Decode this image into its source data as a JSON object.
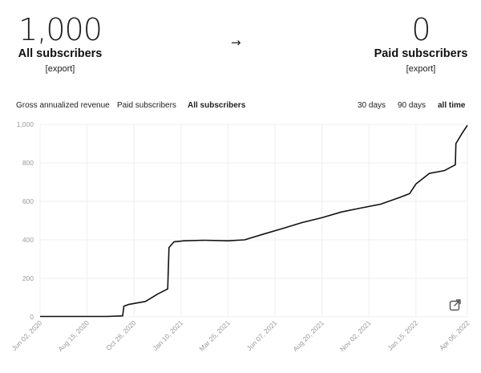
{
  "summary": {
    "left": {
      "number": "1,000",
      "label": "All subscribers",
      "export": "[export]"
    },
    "arrow": "→",
    "right": {
      "number": "0",
      "label": "Paid subscribers",
      "export": "[export]"
    }
  },
  "metric_tabs": [
    {
      "label": "Gross annualized revenue",
      "active": false
    },
    {
      "label": "Paid subscribers",
      "active": false
    },
    {
      "label": "All subscribers",
      "active": true
    }
  ],
  "range_tabs": [
    {
      "label": "30 days",
      "active": false
    },
    {
      "label": "90 days",
      "active": false
    },
    {
      "label": "all time",
      "active": true
    }
  ],
  "open_external_icon": "external-link-icon",
  "chart_data": {
    "type": "line",
    "series": [
      {
        "x": [
          "2020-06-02",
          "2020-08-01",
          "2020-09-15",
          "2020-10-10",
          "2020-10-12",
          "2020-10-20",
          "2020-11-15",
          "2020-12-05",
          "2020-12-20",
          "2020-12-22",
          "2020-12-30",
          "2021-01-15",
          "2021-02-15",
          "2021-03-25",
          "2021-04-20",
          "2021-05-20",
          "2021-06-20",
          "2021-07-20",
          "2021-08-20",
          "2021-09-20",
          "2021-10-20",
          "2021-11-20",
          "2021-12-20",
          "2022-01-05",
          "2022-01-15",
          "2022-02-05",
          "2022-03-01",
          "2022-03-18",
          "2022-03-19",
          "2022-03-28",
          "2022-04-06"
        ],
        "y": [
          2,
          2,
          2,
          5,
          55,
          65,
          80,
          120,
          145,
          360,
          390,
          395,
          398,
          395,
          400,
          430,
          460,
          490,
          515,
          545,
          565,
          585,
          620,
          640,
          690,
          745,
          760,
          790,
          900,
          950,
          995
        ]
      }
    ],
    "y_ticks": [
      "0",
      "200",
      "400",
      "600",
      "800",
      "1,000"
    ],
    "y_range": [
      0,
      1000
    ],
    "x_ticks": [
      "Jun 02, 2020",
      "Aug 15, 2020",
      "Oct 28, 2020",
      "Jan 10, 2021",
      "Mar 25, 2021",
      "Jun 07, 2021",
      "Aug 20, 2021",
      "Nov 02, 2021",
      "Jan 15, 2022",
      "Apr 06, 2022"
    ],
    "x_range": [
      "2020-06-02",
      "2022-04-06"
    ],
    "grid": true,
    "colors": {
      "line": "#111111",
      "grid": "#efefef"
    }
  }
}
